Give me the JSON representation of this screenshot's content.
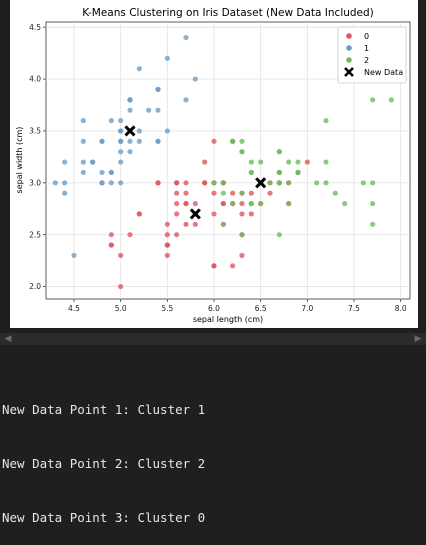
{
  "colors": {
    "c0": "#e0565f",
    "c1": "#6b9ec7",
    "c2": "#6cbd5f",
    "new": "#000000"
  },
  "output_lines": [
    "New Data Point 1: Cluster 1",
    "New Data Point 2: Cluster 2",
    "New Data Point 3: Cluster 0"
  ],
  "chart_data": {
    "type": "scatter",
    "title": "K-Means Clustering on Iris Dataset (New Data Included)",
    "xlabel": "sepal length (cm)",
    "ylabel": "sepal width (cm)",
    "xlim": [
      4.2,
      8.1
    ],
    "ylim": [
      1.88,
      4.55
    ],
    "xticks": [
      "4.5",
      "5.0",
      "5.5",
      "6.0",
      "6.5",
      "7.0",
      "7.5",
      "8.0"
    ],
    "yticks": [
      "2.0",
      "2.5",
      "3.0",
      "3.5",
      "4.0",
      "4.5"
    ],
    "grid": true,
    "legend_position": "top-right",
    "legend": [
      "0",
      "1",
      "2",
      "New Data"
    ],
    "series": [
      {
        "name": "0",
        "color": "#e0565f",
        "points": [
          [
            5.8,
            2.7
          ],
          [
            5.7,
            2.8
          ],
          [
            5.5,
            2.3
          ],
          [
            4.9,
            2.4
          ],
          [
            5.2,
            2.7
          ],
          [
            5.0,
            2.0
          ],
          [
            5.9,
            3.0
          ],
          [
            6.0,
            2.2
          ],
          [
            5.6,
            2.9
          ],
          [
            5.6,
            3.0
          ],
          [
            5.8,
            2.7
          ],
          [
            6.2,
            2.2
          ],
          [
            5.6,
            2.5
          ],
          [
            5.9,
            3.2
          ],
          [
            6.1,
            2.8
          ],
          [
            6.3,
            2.5
          ],
          [
            6.1,
            2.8
          ],
          [
            6.4,
            2.9
          ],
          [
            5.7,
            2.6
          ],
          [
            5.5,
            2.4
          ],
          [
            5.5,
            2.4
          ],
          [
            5.8,
            2.7
          ],
          [
            6.0,
            2.7
          ],
          [
            5.4,
            3.0
          ],
          [
            6.0,
            3.4
          ],
          [
            6.3,
            2.3
          ],
          [
            5.6,
            3.0
          ],
          [
            5.5,
            2.5
          ],
          [
            5.5,
            2.6
          ],
          [
            6.1,
            3.0
          ],
          [
            5.8,
            2.6
          ],
          [
            5.0,
            2.3
          ],
          [
            5.6,
            2.7
          ],
          [
            5.7,
            3.0
          ],
          [
            5.7,
            2.9
          ],
          [
            6.2,
            2.9
          ],
          [
            5.1,
            2.5
          ],
          [
            5.7,
            2.8
          ],
          [
            4.9,
            2.5
          ],
          [
            6.3,
            2.9
          ],
          [
            6.0,
            3.0
          ],
          [
            6.1,
            2.6
          ],
          [
            6.0,
            2.2
          ],
          [
            5.6,
            2.8
          ],
          [
            6.3,
            2.7
          ],
          [
            6.2,
            2.8
          ],
          [
            6.1,
            3.0
          ],
          [
            5.8,
            2.8
          ],
          [
            6.4,
            2.7
          ],
          [
            6.3,
            2.8
          ],
          [
            6.0,
            2.9
          ],
          [
            5.8,
            2.7
          ],
          [
            6.8,
            2.8
          ],
          [
            6.7,
            3.0
          ],
          [
            6.9,
            3.1
          ],
          [
            6.6,
            2.9
          ],
          [
            6.5,
            2.8
          ],
          [
            7.0,
            3.2
          ],
          [
            6.8,
            3.0
          ],
          [
            5.4,
            3.0
          ],
          [
            6.2,
            3.4
          ],
          [
            5.9,
            3.0
          ],
          [
            5.8,
            2.7
          ],
          [
            5.5,
            2.4
          ],
          [
            6.7,
            3.1
          ],
          [
            6.6,
            3.0
          ],
          [
            5.2,
            2.7
          ],
          [
            4.9,
            2.4
          ]
        ]
      },
      {
        "name": "1",
        "color": "#6b9ec7",
        "points": [
          [
            5.1,
            3.5
          ],
          [
            4.9,
            3.0
          ],
          [
            4.7,
            3.2
          ],
          [
            4.6,
            3.1
          ],
          [
            5.0,
            3.6
          ],
          [
            5.4,
            3.9
          ],
          [
            4.6,
            3.4
          ],
          [
            5.0,
            3.4
          ],
          [
            4.4,
            2.9
          ],
          [
            4.9,
            3.1
          ],
          [
            5.4,
            3.7
          ],
          [
            4.8,
            3.4
          ],
          [
            4.8,
            3.0
          ],
          [
            4.3,
            3.0
          ],
          [
            5.8,
            4.0
          ],
          [
            5.7,
            4.4
          ],
          [
            5.4,
            3.9
          ],
          [
            5.1,
            3.5
          ],
          [
            5.7,
            3.8
          ],
          [
            5.1,
            3.8
          ],
          [
            5.4,
            3.4
          ],
          [
            5.1,
            3.7
          ],
          [
            4.6,
            3.6
          ],
          [
            5.1,
            3.3
          ],
          [
            4.8,
            3.4
          ],
          [
            5.0,
            3.0
          ],
          [
            5.0,
            3.4
          ],
          [
            5.2,
            3.5
          ],
          [
            5.2,
            3.4
          ],
          [
            4.7,
            3.2
          ],
          [
            4.8,
            3.1
          ],
          [
            5.4,
            3.4
          ],
          [
            5.2,
            4.1
          ],
          [
            5.5,
            4.2
          ],
          [
            4.9,
            3.1
          ],
          [
            5.0,
            3.2
          ],
          [
            5.5,
            3.5
          ],
          [
            4.9,
            3.6
          ],
          [
            4.4,
            3.0
          ],
          [
            5.1,
            3.4
          ],
          [
            5.0,
            3.5
          ],
          [
            4.5,
            2.3
          ],
          [
            4.4,
            3.2
          ],
          [
            5.0,
            3.5
          ],
          [
            5.1,
            3.8
          ],
          [
            4.8,
            3.0
          ],
          [
            5.1,
            3.8
          ],
          [
            4.6,
            3.2
          ],
          [
            5.3,
            3.7
          ],
          [
            5.0,
            3.3
          ]
        ]
      },
      {
        "name": "2",
        "color": "#6cbd5f",
        "points": [
          [
            6.3,
            3.3
          ],
          [
            7.1,
            3.0
          ],
          [
            6.5,
            3.0
          ],
          [
            7.6,
            3.0
          ],
          [
            7.3,
            2.9
          ],
          [
            6.7,
            2.5
          ],
          [
            7.2,
            3.6
          ],
          [
            6.4,
            3.2
          ],
          [
            6.8,
            3.0
          ],
          [
            6.4,
            2.8
          ],
          [
            6.5,
            3.0
          ],
          [
            7.7,
            3.8
          ],
          [
            7.7,
            2.6
          ],
          [
            6.9,
            3.2
          ],
          [
            7.7,
            2.8
          ],
          [
            6.7,
            3.3
          ],
          [
            7.2,
            3.2
          ],
          [
            6.2,
            2.8
          ],
          [
            6.4,
            2.8
          ],
          [
            7.2,
            3.0
          ],
          [
            7.4,
            2.8
          ],
          [
            7.9,
            3.8
          ],
          [
            6.4,
            2.8
          ],
          [
            6.1,
            2.6
          ],
          [
            7.7,
            3.0
          ],
          [
            6.3,
            3.4
          ],
          [
            6.4,
            3.1
          ],
          [
            6.9,
            3.1
          ],
          [
            6.7,
            3.1
          ],
          [
            6.9,
            3.1
          ],
          [
            6.8,
            3.2
          ],
          [
            6.7,
            3.3
          ],
          [
            6.7,
            3.0
          ],
          [
            6.5,
            3.0
          ],
          [
            6.2,
            3.4
          ],
          [
            6.5,
            3.2
          ],
          [
            6.6,
            3.0
          ],
          [
            6.3,
            3.3
          ],
          [
            6.0,
            3.0
          ],
          [
            6.7,
            3.1
          ],
          [
            6.1,
            3.0
          ],
          [
            6.9,
            3.1
          ],
          [
            6.3,
            2.5
          ],
          [
            6.7,
            3.0
          ],
          [
            6.4,
            3.1
          ],
          [
            6.5,
            2.8
          ],
          [
            6.1,
            2.9
          ],
          [
            6.3,
            2.9
          ],
          [
            6.2,
            3.4
          ],
          [
            6.8,
            2.8
          ]
        ]
      }
    ],
    "new_points": [
      [
        5.1,
        3.5
      ],
      [
        6.5,
        3.0
      ],
      [
        5.8,
        2.7
      ]
    ]
  }
}
